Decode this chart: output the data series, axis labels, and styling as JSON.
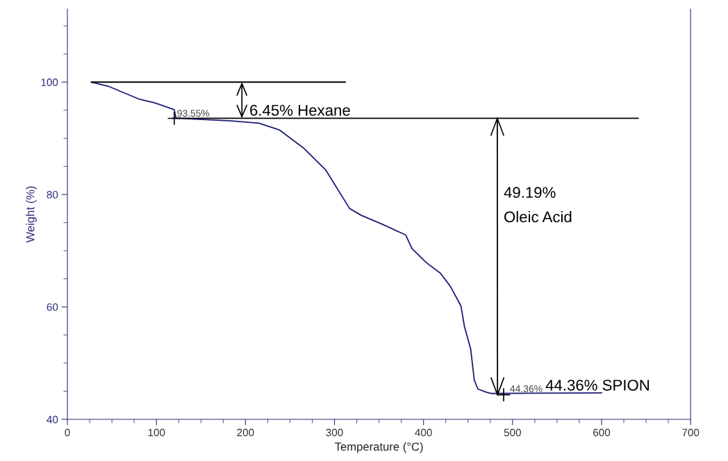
{
  "chart_data": {
    "type": "line",
    "xlabel": "Temperature (°C)",
    "ylabel": "Weight (%)",
    "xlim": [
      0,
      700
    ],
    "xticks": [
      0,
      100,
      200,
      300,
      400,
      500,
      600,
      700
    ],
    "ylim": [
      40,
      113
    ],
    "yticks": [
      40,
      60,
      80,
      100
    ],
    "grid": false,
    "legend": false,
    "marker": "none",
    "line_style": "solid",
    "series": [
      {
        "color": "#1c1c78",
        "x": [
          27,
          47,
          80,
          98,
          120,
          122,
          133,
          184,
          215,
          238,
          265,
          290,
          317,
          330,
          354,
          380,
          387,
          403,
          419,
          430,
          442,
          446,
          453,
          457,
          461,
          471,
          476,
          600
        ],
        "values": [
          100,
          99.2,
          97.0,
          96.3,
          95.1,
          93.6,
          93.5,
          93.1,
          92.7,
          91.5,
          88.3,
          84.4,
          77.5,
          76.3,
          74.7,
          72.8,
          70.4,
          67.9,
          66.0,
          63.7,
          60.2,
          56.5,
          52.5,
          47.0,
          45.4,
          44.8,
          44.6,
          44.7
        ]
      },
      {
        "type": "line",
        "color": "#000000",
        "x": [
          27,
          312
        ],
        "values": [
          100,
          100
        ]
      },
      {
        "type": "line",
        "color": "#000000",
        "x": [
          118,
          641
        ],
        "values": [
          93.55,
          93.55
        ]
      },
      {
        "type": "line",
        "color": "#000000",
        "x": [
          482.9,
          483.1
        ],
        "values": [
          93.55,
          44.36
        ]
      },
      {
        "type": "scatter",
        "color": "#000000",
        "marker": "cross",
        "x": [
          120,
          490
        ],
        "values": [
          93.55,
          44.36
        ]
      }
    ],
    "annotations": [
      {
        "text": "93.55%",
        "x": 123,
        "y": 94.3
      },
      {
        "text": "44.36%",
        "x": 497,
        "y": 45.3
      },
      "6.45% Hexane",
      "49.19%\nOleic Acid",
      "44.36% SPION"
    ]
  }
}
